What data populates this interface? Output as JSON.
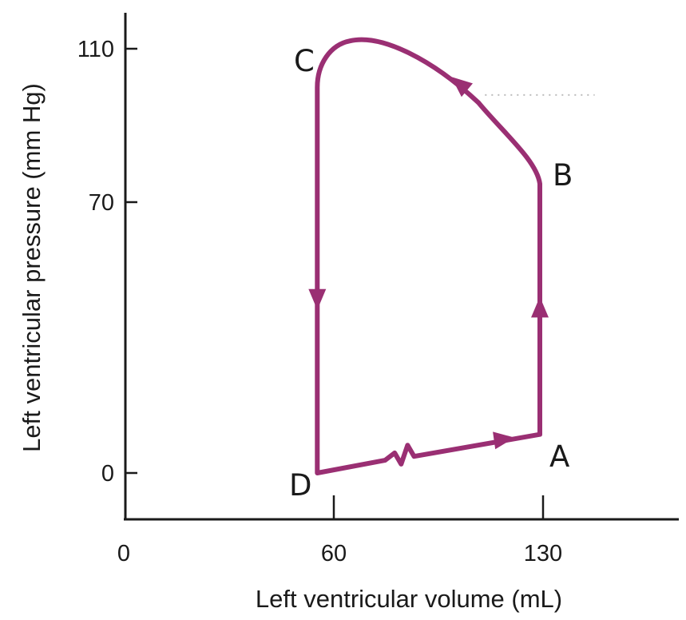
{
  "chart_data": {
    "type": "line",
    "title": "",
    "xlabel": "Left ventricular volume (mL)",
    "ylabel": "Left ventricular pressure (mm Hg)",
    "x_ticks": [
      "0",
      "60",
      "130"
    ],
    "y_ticks": [
      "0",
      "70",
      "110"
    ],
    "xlim": [
      0,
      130
    ],
    "ylim": [
      0,
      110
    ],
    "grid": false,
    "loop_color": "#9a2f73",
    "reference_line_color": "#bdbdbd",
    "reference_pressure": 98,
    "points": [
      {
        "label": "A",
        "volume": 129,
        "pressure": 10
      },
      {
        "label": "B",
        "volume": 129,
        "pressure": 75
      },
      {
        "label": "C",
        "volume": 60,
        "pressure": 108
      },
      {
        "label": "D",
        "volume": 60,
        "pressure": 0
      }
    ],
    "loop": {
      "x": [
        60,
        63,
        70,
        85,
        100,
        112,
        120,
        127,
        129,
        129,
        60,
        60
      ],
      "y": [
        0,
        1,
        2.5,
        4.5,
        7,
        8.5,
        9.3,
        9.8,
        10,
        75,
        108,
        0
      ]
    }
  }
}
